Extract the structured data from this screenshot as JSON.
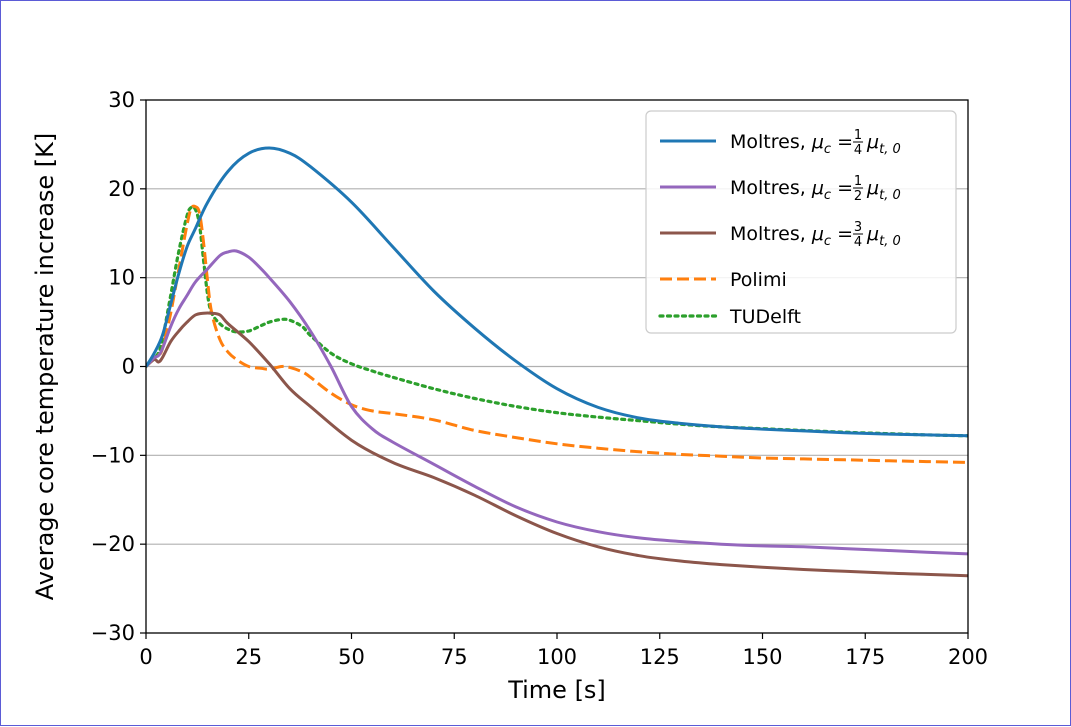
{
  "chart_data": {
    "type": "line",
    "title": "",
    "xlabel": "Time [s]",
    "ylabel": "Average core temperature increase [K]",
    "xlim": [
      0,
      200
    ],
    "ylim": [
      -30,
      30
    ],
    "xticks": [
      0,
      25,
      50,
      75,
      100,
      125,
      150,
      175,
      200
    ],
    "xtick_labels": [
      "0",
      "25",
      "50",
      "75",
      "100",
      "125",
      "150",
      "175",
      "200"
    ],
    "yticks": [
      30,
      20,
      10,
      0,
      -10,
      -20,
      -30
    ],
    "ytick_labels": [
      "30",
      "20",
      "10",
      "0",
      "−10",
      "−20",
      "−30"
    ],
    "grid": "horizontal",
    "legend_position": "top-right",
    "series": [
      {
        "legend": {
          "prefix": "Moltres, ",
          "mu": "μ",
          "c": "c",
          "eq": " = ",
          "num": "1",
          "den": "4",
          "t0": "t, 0"
        },
        "color": "#1f77b4",
        "style": "solid",
        "x": [
          0,
          2,
          4,
          6,
          8,
          10,
          12,
          15,
          20,
          25,
          30,
          35,
          40,
          50,
          60,
          70,
          80,
          90,
          100,
          110,
          120,
          130,
          140,
          150,
          160,
          170,
          180,
          190,
          200
        ],
        "y": [
          0,
          1.5,
          3.5,
          7,
          10.5,
          13.5,
          15.5,
          18.5,
          22,
          24,
          24.6,
          24,
          22.5,
          18.5,
          13.5,
          8.5,
          4.3,
          0.6,
          -2.5,
          -4.6,
          -5.8,
          -6.4,
          -6.8,
          -7.05,
          -7.25,
          -7.45,
          -7.6,
          -7.7,
          -7.8
        ]
      },
      {
        "legend": {
          "prefix": "Moltres, ",
          "mu": "μ",
          "c": "c",
          "eq": " = ",
          "num": "1",
          "den": "2",
          "t0": "t, 0"
        },
        "color": "#9467bd",
        "style": "solid",
        "x": [
          0,
          2,
          3,
          4,
          6,
          8,
          10,
          12,
          15,
          18,
          20,
          22,
          25,
          28,
          30,
          35,
          40,
          45,
          50,
          55,
          60,
          70,
          80,
          90,
          100,
          110,
          120,
          130,
          140,
          150,
          160,
          170,
          180,
          190,
          200
        ],
        "y": [
          0,
          1,
          1.2,
          2,
          4.5,
          6.5,
          8,
          9.5,
          11,
          12.5,
          12.9,
          13,
          12.3,
          11,
          10,
          7.3,
          4,
          0,
          -4.5,
          -7,
          -8.5,
          -11,
          -13.5,
          -15.8,
          -17.5,
          -18.6,
          -19.3,
          -19.7,
          -20,
          -20.2,
          -20.3,
          -20.5,
          -20.7,
          -20.9,
          -21.1
        ]
      },
      {
        "legend": {
          "prefix": "Moltres, ",
          "mu": "μ",
          "c": "c",
          "eq": " = ",
          "num": "3",
          "den": "4",
          "t0": "t, 0"
        },
        "color": "#8c564b",
        "style": "solid",
        "x": [
          0,
          2,
          3,
          4,
          6,
          8,
          10,
          12,
          14,
          16,
          18,
          20,
          25,
          30,
          35,
          40,
          50,
          60,
          70,
          80,
          90,
          100,
          110,
          120,
          130,
          140,
          150,
          160,
          170,
          180,
          190,
          200
        ],
        "y": [
          0,
          0.8,
          0.5,
          1,
          2.8,
          4,
          5,
          5.8,
          6,
          6,
          5.8,
          4.8,
          2.8,
          0.3,
          -2.5,
          -4.5,
          -8.3,
          -10.8,
          -12.5,
          -14.5,
          -16.8,
          -18.8,
          -20.3,
          -21.3,
          -21.9,
          -22.3,
          -22.6,
          -22.85,
          -23.05,
          -23.25,
          -23.4,
          -23.55
        ]
      },
      {
        "legend": {
          "prefix": "Polimi"
        },
        "color": "#ff7f0e",
        "style": "dashed",
        "x": [
          0,
          2,
          3,
          4,
          6,
          8,
          10,
          11,
          12,
          13,
          14,
          15,
          16,
          18,
          20,
          22,
          25,
          28,
          30,
          33,
          35,
          38,
          40,
          45,
          50,
          55,
          60,
          70,
          80,
          90,
          100,
          110,
          120,
          130,
          140,
          150,
          160,
          170,
          180,
          190,
          200
        ],
        "y": [
          0,
          1,
          1.3,
          2,
          6,
          11,
          16,
          17.8,
          18,
          17.3,
          14,
          9.5,
          6,
          3,
          1.6,
          0.8,
          0,
          -0.2,
          -0.3,
          0,
          -0.1,
          -0.6,
          -1.2,
          -3,
          -4.3,
          -5,
          -5.3,
          -6,
          -7.2,
          -8,
          -8.7,
          -9.2,
          -9.6,
          -9.9,
          -10.1,
          -10.3,
          -10.4,
          -10.5,
          -10.6,
          -10.7,
          -10.8
        ]
      },
      {
        "legend": {
          "prefix": "TUDelft"
        },
        "color": "#2ca02c",
        "style": "dotted",
        "x": [
          0,
          2,
          3,
          4,
          6,
          8,
          10,
          11,
          12,
          13,
          14,
          15,
          16,
          18,
          20,
          22,
          25,
          28,
          30,
          33,
          35,
          38,
          40,
          45,
          50,
          55,
          60,
          70,
          80,
          90,
          100,
          110,
          120,
          130,
          140,
          150,
          160,
          170,
          180,
          190,
          200
        ],
        "y": [
          0,
          1,
          1.5,
          3,
          8,
          13,
          17,
          17.9,
          17.7,
          16,
          12,
          8,
          6,
          4.8,
          4.2,
          3.9,
          4,
          4.6,
          5,
          5.3,
          5.2,
          4.5,
          3.5,
          1.5,
          0.3,
          -0.5,
          -1.2,
          -2.5,
          -3.6,
          -4.5,
          -5.2,
          -5.7,
          -6.1,
          -6.5,
          -6.8,
          -7,
          -7.2,
          -7.4,
          -7.55,
          -7.7,
          -7.8
        ]
      }
    ]
  }
}
